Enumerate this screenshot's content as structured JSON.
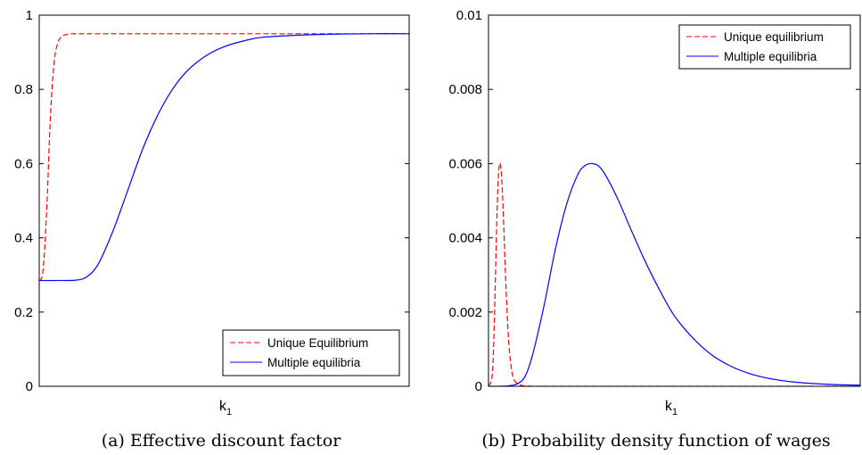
{
  "chart_data": [
    {
      "type": "line",
      "caption": "(a) Effective discount factor",
      "xlabel": "k",
      "xlabel_subscript": "1",
      "x_ticks_shown": false,
      "ylim": [
        0,
        1
      ],
      "yticks": [
        "0",
        "0.2",
        "0.4",
        "0.6",
        "0.8",
        "1"
      ],
      "legend_placement": "bottom-right",
      "grid": false,
      "series": [
        {
          "name": "Unique Equilibrium",
          "style": "dashed",
          "color": "#ff0000",
          "x": [
            0,
            0.01,
            0.02,
            0.03,
            0.04,
            0.05,
            0.06,
            0.07,
            0.08,
            0.09,
            0.1,
            0.12,
            0.15,
            0.2,
            0.3,
            0.5,
            0.75,
            1
          ],
          "y": [
            0.285,
            0.31,
            0.47,
            0.72,
            0.87,
            0.925,
            0.942,
            0.947,
            0.949,
            0.95,
            0.95,
            0.95,
            0.95,
            0.95,
            0.95,
            0.95,
            0.95,
            0.95
          ]
        },
        {
          "name": "Multiple equilibria",
          "style": "solid",
          "color": "#0000ff",
          "x": [
            0,
            0.05,
            0.1,
            0.13,
            0.16,
            0.2,
            0.24,
            0.28,
            0.32,
            0.36,
            0.4,
            0.45,
            0.5,
            0.55,
            0.6,
            0.7,
            0.8,
            0.9,
            1
          ],
          "y": [
            0.285,
            0.285,
            0.286,
            0.296,
            0.33,
            0.42,
            0.53,
            0.64,
            0.73,
            0.8,
            0.85,
            0.89,
            0.915,
            0.93,
            0.94,
            0.946,
            0.949,
            0.95,
            0.95
          ]
        }
      ]
    },
    {
      "type": "line",
      "caption": "(b) Probability density function of wages",
      "xlabel": "k",
      "xlabel_subscript": "1",
      "x_ticks_shown": false,
      "ylim": [
        0,
        0.01
      ],
      "yticks": [
        "0",
        "0.002",
        "0.004",
        "0.006",
        "0.008",
        "0.01"
      ],
      "legend_placement": "top-right",
      "grid": false,
      "series": [
        {
          "name": "Unique equilibrium",
          "style": "dashed",
          "color": "#ff0000",
          "x": [
            0,
            0.01,
            0.015,
            0.02,
            0.025,
            0.03,
            0.035,
            0.04,
            0.045,
            0.05,
            0.055,
            0.06,
            0.065,
            0.07,
            0.08,
            0.09,
            0.1,
            0.12,
            0.15,
            0.2,
            0.3,
            0.5,
            1
          ],
          "y": [
            0,
            0.0003,
            0.0015,
            0.0035,
            0.0053,
            0.006,
            0.0057,
            0.0046,
            0.0032,
            0.002,
            0.0011,
            0.0006,
            0.0003,
            0.00015,
            6e-05,
            2e-05,
            1e-05,
            0,
            0,
            0,
            0,
            0,
            0
          ]
        },
        {
          "name": "Multiple equilibria",
          "style": "solid",
          "color": "#0000ff",
          "x": [
            0,
            0.05,
            0.08,
            0.1,
            0.12,
            0.15,
            0.18,
            0.21,
            0.24,
            0.26,
            0.28,
            0.3,
            0.32,
            0.35,
            0.38,
            0.42,
            0.46,
            0.5,
            0.55,
            0.6,
            0.65,
            0.7,
            0.75,
            0.8,
            0.85,
            0.9,
            0.95,
            1
          ],
          "y": [
            0,
            1e-05,
            8e-05,
            0.0003,
            0.0009,
            0.0022,
            0.0037,
            0.0049,
            0.0057,
            0.00595,
            0.006,
            0.0059,
            0.0056,
            0.005,
            0.0043,
            0.0034,
            0.0026,
            0.0019,
            0.0013,
            0.00085,
            0.00055,
            0.00035,
            0.00022,
            0.00014,
            9e-05,
            6e-05,
            4e-05,
            3e-05
          ]
        }
      ]
    }
  ]
}
